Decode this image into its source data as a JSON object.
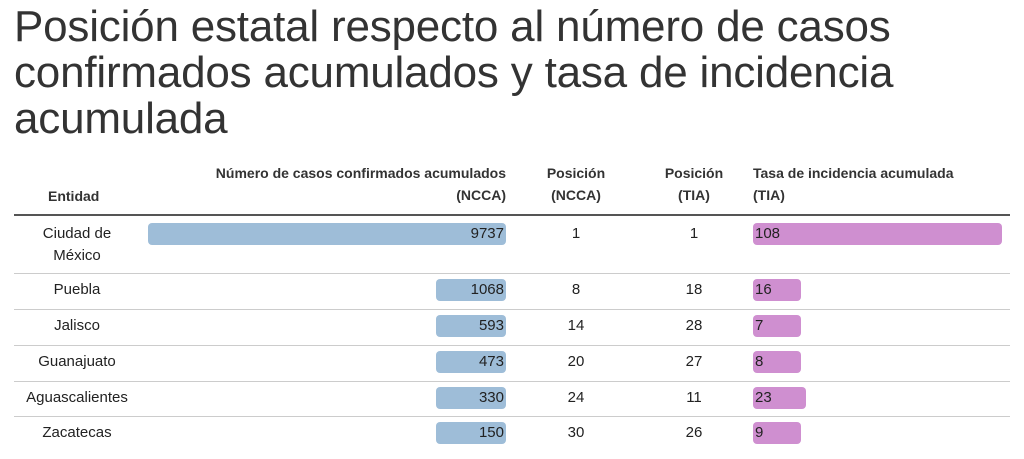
{
  "title": "Posición estatal respecto al número de casos confirmados acumulados y tasa de incidencia acumulada",
  "headers": {
    "entidad": "Entidad",
    "ncca": [
      "Número de casos confirmados acumulados",
      "(NCCA)"
    ],
    "pos_ncca": [
      "Posición",
      "(NCCA)"
    ],
    "pos_tia": [
      "Posición",
      "(TIA)"
    ],
    "tia": [
      "Tasa de incidencia acumulada",
      "(TIA)"
    ]
  },
  "colors": {
    "ncca_bar": "#9ebdd8",
    "tia_bar": "#cf8fd0",
    "header_rule": "#555555",
    "row_rule": "#cccccc"
  },
  "chart_data": {
    "type": "table",
    "title": "Posición estatal respecto al número de casos confirmados acumulados y tasa de incidencia acumulada",
    "columns": [
      "Entidad",
      "Número de casos confirmados acumulados (NCCA)",
      "Posición (NCCA)",
      "Posición (TIA)",
      "Tasa de incidencia acumulada (TIA)"
    ],
    "ncca_max": 9737,
    "tia_max": 108,
    "rows": [
      {
        "entidad": [
          "Ciudad de",
          "México"
        ],
        "ncca": 9737,
        "pos_ncca": 1,
        "pos_tia": 1,
        "tia": 108
      },
      {
        "entidad": [
          "Puebla"
        ],
        "ncca": 1068,
        "pos_ncca": 8,
        "pos_tia": 18,
        "tia": 16
      },
      {
        "entidad": [
          "Jalisco"
        ],
        "ncca": 593,
        "pos_ncca": 14,
        "pos_tia": 28,
        "tia": 7
      },
      {
        "entidad": [
          "Guanajuato"
        ],
        "ncca": 473,
        "pos_ncca": 20,
        "pos_tia": 27,
        "tia": 8
      },
      {
        "entidad": [
          "Aguascalientes"
        ],
        "ncca": 330,
        "pos_ncca": 24,
        "pos_tia": 11,
        "tia": 23
      },
      {
        "entidad": [
          "Zacatecas"
        ],
        "ncca": 150,
        "pos_ncca": 30,
        "pos_tia": 26,
        "tia": 9
      }
    ]
  }
}
